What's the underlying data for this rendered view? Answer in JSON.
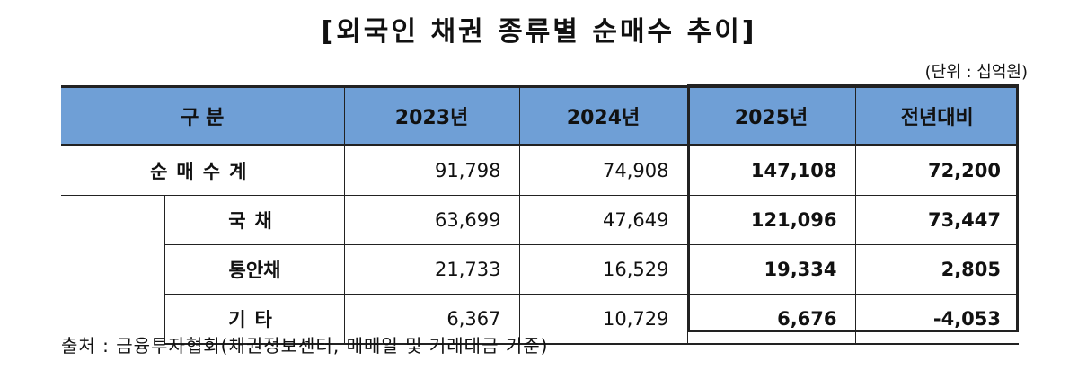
{
  "title": "[외국인 채권 종류별 순매수 추이]",
  "unit": "(단위 : 십억원)",
  "headers": [
    "구 분",
    "2023년",
    "2024년",
    "2025년",
    "전년대비"
  ],
  "rows": [
    {
      "label": "순매수계",
      "values": [
        "91,798",
        "74,908",
        "147,108",
        "72,200"
      ]
    },
    {
      "label": "국채",
      "values": [
        "63,699",
        "47,649",
        "121,096",
        "73,447"
      ]
    },
    {
      "label": "통안채",
      "values": [
        "21,733",
        "16,529",
        "19,334",
        "2,805"
      ]
    },
    {
      "label": "기타",
      "values": [
        "6,367",
        "10,729",
        "6,676",
        "-4,053"
      ]
    }
  ],
  "source": "출처 : 금융투자협회(채권정보센터, 매매일 및 거래대금 기준)"
}
